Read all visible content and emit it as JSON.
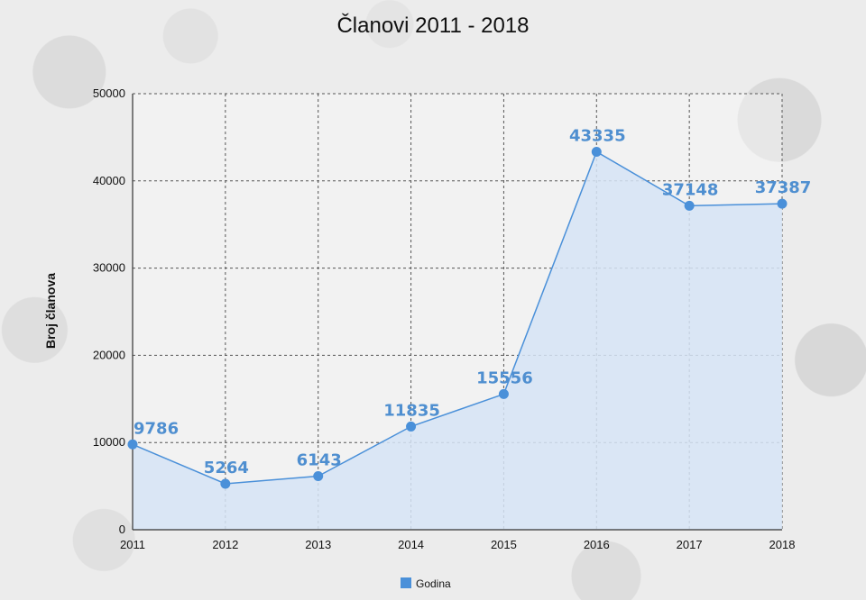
{
  "chart_data": {
    "type": "area",
    "title": "Članovi 2011 - 2018",
    "xlabel": "",
    "ylabel": "Broj članova",
    "categories": [
      "2011",
      "2012",
      "2013",
      "2014",
      "2015",
      "2016",
      "2017",
      "2018"
    ],
    "series": [
      {
        "name": "Godina",
        "values": [
          9786,
          5264,
          6143,
          11835,
          15556,
          43335,
          37148,
          37387
        ],
        "color": "#4a90d9",
        "fill": "#d6e4f6"
      }
    ],
    "data_labels": [
      "9786",
      "5264",
      "6143",
      "11835",
      "15556",
      "43335",
      "37148",
      "37387"
    ],
    "ylim": [
      0,
      50000
    ],
    "yticks": [
      0,
      10000,
      20000,
      30000,
      40000,
      50000
    ],
    "ytick_labels": [
      "0",
      "10000",
      "20000",
      "30000",
      "40000",
      "50000"
    ],
    "grid": true,
    "legend_position": "bottom-center"
  }
}
